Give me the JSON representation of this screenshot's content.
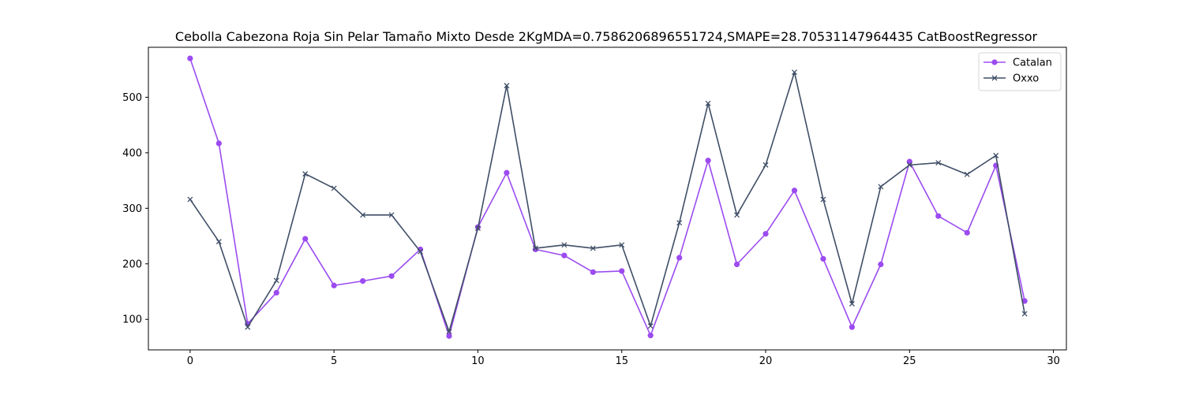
{
  "chart_data": {
    "type": "line",
    "title": "Cebolla Cabezona Roja Sin Pelar Tamaño Mixto Desde 2KgMDA=0.7586206896551724,SMAPE=28.70531147964435 CatBoostRegressor",
    "xlabel": "",
    "ylabel": "",
    "xlim": [
      -1.45,
      30.45
    ],
    "ylim": [
      45,
      590
    ],
    "x_ticks": [
      0,
      5,
      10,
      15,
      20,
      25,
      30
    ],
    "y_ticks": [
      100,
      200,
      300,
      400,
      500
    ],
    "grid": false,
    "legend_position": "top-right",
    "x": [
      0,
      1,
      2,
      3,
      4,
      5,
      6,
      7,
      8,
      9,
      10,
      11,
      12,
      13,
      14,
      15,
      16,
      17,
      18,
      19,
      20,
      21,
      22,
      23,
      24,
      25,
      26,
      27,
      28,
      29
    ],
    "series": [
      {
        "name": "Catalan",
        "color": "#9b4bf0",
        "marker": "circle",
        "values": [
          570,
          417,
          92,
          148,
          245,
          161,
          169,
          178,
          226,
          70,
          266,
          364,
          226,
          215,
          185,
          187,
          71,
          211,
          386,
          199,
          254,
          332,
          209,
          86,
          199,
          384,
          286,
          256,
          377,
          133
        ]
      },
      {
        "name": "Oxxo",
        "color": "#3f4e66",
        "marker": "x",
        "values": [
          316,
          240,
          86,
          170,
          362,
          336,
          288,
          288,
          222,
          78,
          264,
          521,
          228,
          234,
          228,
          234,
          88,
          274,
          489,
          288,
          378,
          545,
          316,
          128,
          339,
          378,
          382,
          361,
          395,
          110
        ]
      }
    ]
  }
}
